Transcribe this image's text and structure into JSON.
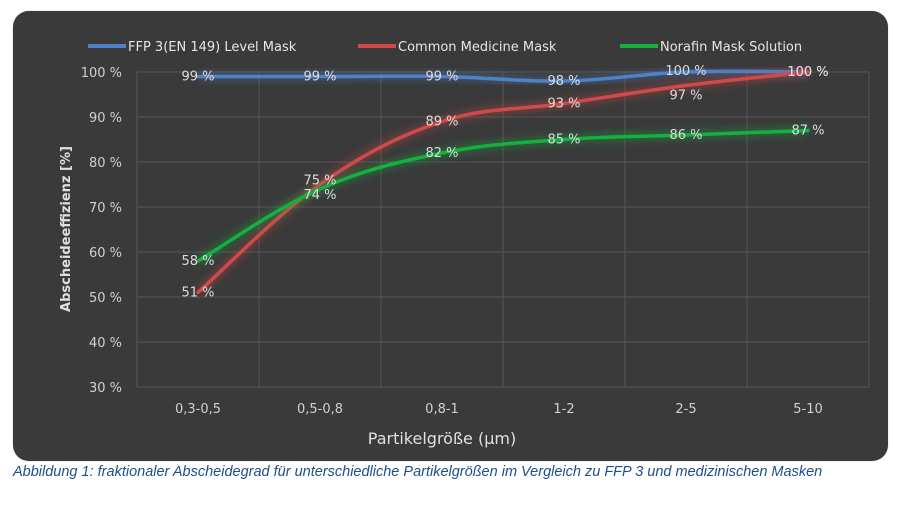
{
  "chart_data": {
    "type": "line",
    "title": "",
    "xlabel": "Partikelgröße (µm)",
    "ylabel": "Abscheideeffizienz [%]",
    "categories": [
      "0,3-0,5",
      "0,5-0,8",
      "0,8-1",
      "1-2",
      "2-5",
      "5-10"
    ],
    "ylim": [
      30,
      100
    ],
    "yticks": [
      30,
      40,
      50,
      60,
      70,
      80,
      90,
      100
    ],
    "ytick_labels": [
      "30 %",
      "40 %",
      "50 %",
      "60 %",
      "70 %",
      "80 %",
      "90 %",
      "100 %"
    ],
    "grid": true,
    "legend_position": "top",
    "series": [
      {
        "name": "FFP 3(EN 149) Level Mask",
        "color": "#4f81c7",
        "values": [
          99,
          99,
          99,
          98,
          100,
          100
        ],
        "labels": [
          "99 %",
          "99 %",
          "99 %",
          "98 %",
          "100 %",
          "100 %"
        ]
      },
      {
        "name": "Common Medicine Mask",
        "color": "#d04a4a",
        "values": [
          51,
          75,
          89,
          93,
          97,
          100
        ],
        "labels": [
          "51 %",
          "75 %",
          "89 %",
          "93 %",
          "97 %",
          "100 %"
        ]
      },
      {
        "name": "Norafin Mask Solution",
        "color": "#14b040",
        "values": [
          58,
          74,
          82,
          85,
          86,
          87
        ],
        "labels": [
          "58 %",
          "74 %",
          "82 %",
          "85 %",
          "86 %",
          "87 %"
        ]
      }
    ]
  },
  "caption": "Abbildung 1: fraktionaler Abscheidegrad für unterschiedliche Partikelgrößen im Vergleich zu FFP 3 und medizinischen Masken"
}
